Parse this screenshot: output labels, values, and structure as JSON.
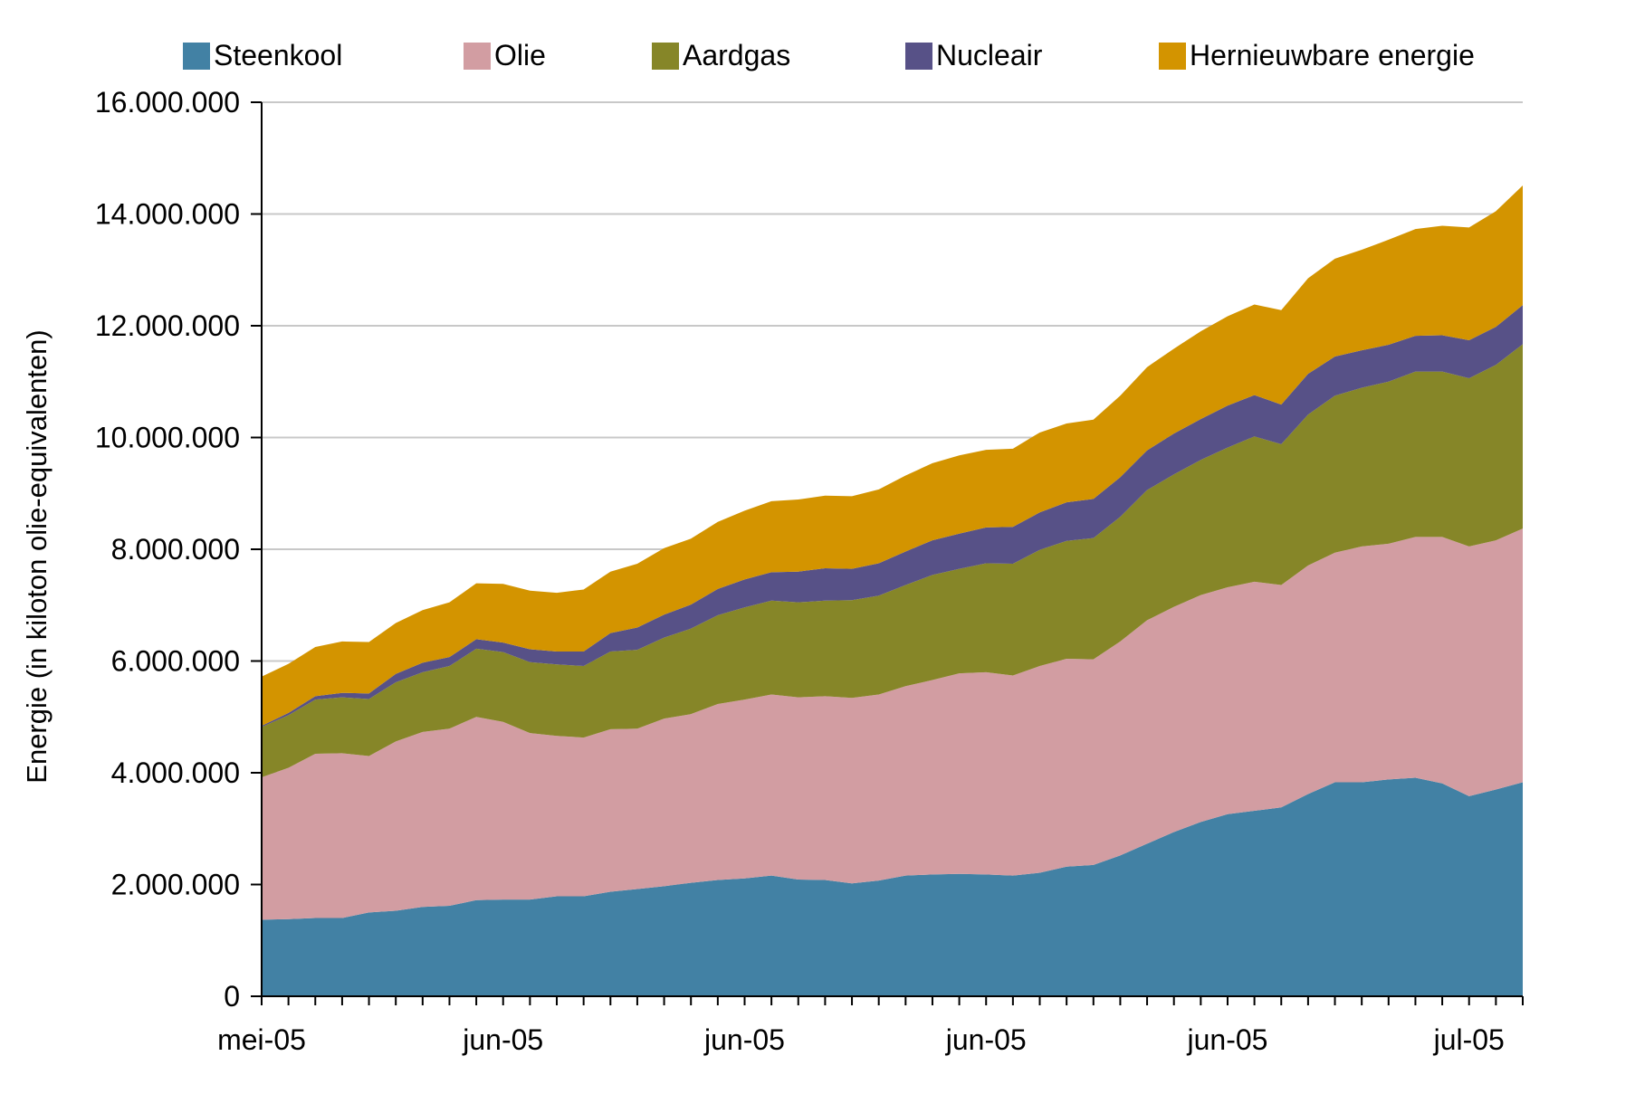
{
  "colors": {
    "steenkool": "#4281a4",
    "olie": "#d29da2",
    "aardgas": "#868628",
    "nucleair": "#575187",
    "hernieuwbaar": "#d39400",
    "grid": "#c8c8c8",
    "axis": "#000000"
  },
  "chart_data": {
    "type": "area",
    "stacked": true,
    "title": "",
    "xlabel": "",
    "ylabel": "Energie (in kiloton olie-equivalenten)",
    "ylim": [
      0,
      16000000
    ],
    "yticks": [
      0,
      2000000,
      4000000,
      6000000,
      8000000,
      10000000,
      12000000,
      14000000,
      16000000
    ],
    "ytick_labels": [
      "0",
      "2.000.000",
      "4.000.000",
      "6.000.000",
      "8.000.000",
      "10.000.000",
      "12.000.000",
      "14.000.000",
      "16.000.000"
    ],
    "x_tick_labels": [
      {
        "index": 0,
        "label": "mei-05"
      },
      {
        "index": 9,
        "label": "jun-05"
      },
      {
        "index": 18,
        "label": "jun-05"
      },
      {
        "index": 27,
        "label": "jun-05"
      },
      {
        "index": 36,
        "label": "jun-05"
      },
      {
        "index": 45,
        "label": "jul-05"
      }
    ],
    "grid": true,
    "legend_position": "top",
    "series": [
      {
        "name": "Steenkool",
        "color_key": "steenkool",
        "values": [
          1370000,
          1380000,
          1400000,
          1400000,
          1500000,
          1530000,
          1600000,
          1620000,
          1720000,
          1730000,
          1730000,
          1790000,
          1790000,
          1870000,
          1920000,
          1970000,
          2030000,
          2080000,
          2110000,
          2160000,
          2090000,
          2080000,
          2020000,
          2070000,
          2160000,
          2180000,
          2190000,
          2180000,
          2160000,
          2210000,
          2320000,
          2350000,
          2520000,
          2730000,
          2940000,
          3120000,
          3260000,
          3320000,
          3380000,
          3620000,
          3830000,
          3830000,
          3880000,
          3910000,
          3810000,
          3580000,
          3700000,
          3830000
        ]
      },
      {
        "name": "Olie",
        "color_key": "olie",
        "values": [
          2550000,
          2710000,
          2940000,
          2950000,
          2800000,
          3030000,
          3130000,
          3170000,
          3280000,
          3180000,
          2980000,
          2870000,
          2840000,
          2910000,
          2870000,
          3000000,
          3020000,
          3150000,
          3200000,
          3240000,
          3260000,
          3290000,
          3320000,
          3330000,
          3390000,
          3480000,
          3590000,
          3620000,
          3580000,
          3700000,
          3720000,
          3680000,
          3830000,
          4000000,
          4030000,
          4060000,
          4060000,
          4100000,
          3980000,
          4090000,
          4110000,
          4220000,
          4220000,
          4310000,
          4410000,
          4470000,
          4460000,
          4540000
        ]
      },
      {
        "name": "Aardgas",
        "color_key": "aardgas",
        "values": [
          900000,
          940000,
          970000,
          1000000,
          1020000,
          1060000,
          1070000,
          1120000,
          1220000,
          1250000,
          1270000,
          1280000,
          1280000,
          1390000,
          1410000,
          1450000,
          1530000,
          1590000,
          1650000,
          1680000,
          1700000,
          1710000,
          1750000,
          1770000,
          1810000,
          1880000,
          1870000,
          1950000,
          2000000,
          2080000,
          2110000,
          2170000,
          2230000,
          2330000,
          2370000,
          2420000,
          2500000,
          2600000,
          2520000,
          2700000,
          2810000,
          2840000,
          2900000,
          2960000,
          2960000,
          3010000,
          3140000,
          3300000
        ]
      },
      {
        "name": "Nucleair",
        "color_key": "nucleair",
        "values": [
          20000,
          40000,
          60000,
          80000,
          100000,
          150000,
          170000,
          160000,
          170000,
          170000,
          230000,
          230000,
          260000,
          330000,
          400000,
          410000,
          430000,
          470000,
          500000,
          510000,
          550000,
          580000,
          560000,
          580000,
          600000,
          620000,
          630000,
          640000,
          660000,
          670000,
          690000,
          700000,
          710000,
          710000,
          730000,
          730000,
          750000,
          740000,
          710000,
          730000,
          700000,
          670000,
          660000,
          640000,
          650000,
          680000,
          680000,
          700000
        ]
      },
      {
        "name": "Hernieuwbare energie",
        "color_key": "hernieuwbaar",
        "values": [
          880000,
          880000,
          880000,
          920000,
          920000,
          910000,
          940000,
          980000,
          1000000,
          1050000,
          1050000,
          1050000,
          1110000,
          1100000,
          1140000,
          1190000,
          1180000,
          1200000,
          1230000,
          1270000,
          1290000,
          1300000,
          1300000,
          1320000,
          1360000,
          1380000,
          1400000,
          1390000,
          1400000,
          1430000,
          1410000,
          1420000,
          1460000,
          1490000,
          1520000,
          1570000,
          1600000,
          1620000,
          1690000,
          1710000,
          1750000,
          1800000,
          1880000,
          1910000,
          1960000,
          2020000,
          2070000,
          2140000
        ]
      }
    ]
  }
}
